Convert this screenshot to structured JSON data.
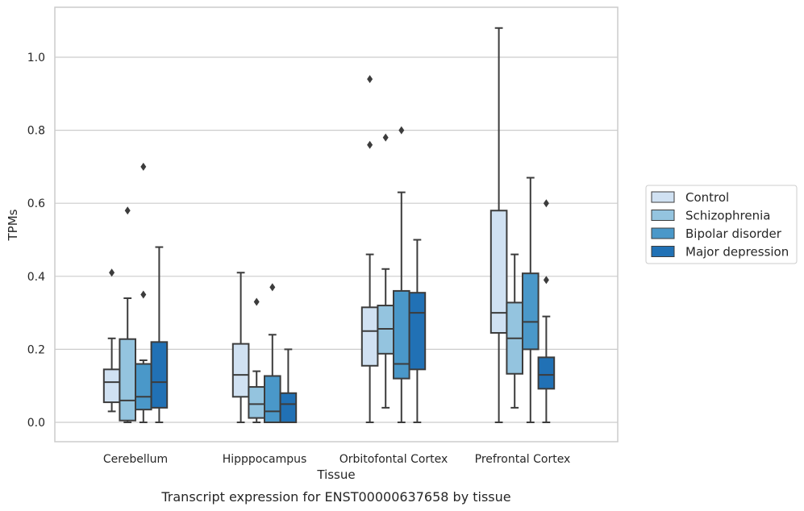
{
  "chart_data": {
    "type": "box",
    "xlabel": "Tissue",
    "ylabel": "TPMs",
    "caption": "Transcript expression for ENST00000637658 by tissue",
    "ylim": [
      -0.05,
      1.14
    ],
    "yticks": [
      0.0,
      0.2,
      0.4,
      0.6,
      0.8,
      1.0
    ],
    "ytick_labels": [
      "0.0",
      "0.2",
      "0.4",
      "0.6",
      "0.8",
      "1.0"
    ],
    "grid": true,
    "legend_position": "right",
    "categories": [
      "Cerebellum",
      "Hipppocampus",
      "Orbitofontal Cortex",
      "Prefrontal Cortex"
    ],
    "series": [
      {
        "name": "Control",
        "color": "#d0e1f2",
        "boxes": [
          {
            "whislo": 0.03,
            "q1": 0.055,
            "med": 0.11,
            "q3": 0.145,
            "whishi": 0.23,
            "fliers": [
              0.41
            ]
          },
          {
            "whislo": 0.0,
            "q1": 0.07,
            "med": 0.13,
            "q3": 0.215,
            "whishi": 0.41,
            "fliers": []
          },
          {
            "whislo": 0.0,
            "q1": 0.155,
            "med": 0.25,
            "q3": 0.315,
            "whishi": 0.46,
            "fliers": [
              0.76,
              0.94
            ]
          },
          {
            "whislo": 0.0,
            "q1": 0.245,
            "med": 0.3,
            "q3": 0.58,
            "whishi": 1.08,
            "fliers": []
          }
        ]
      },
      {
        "name": "Schizophrenia",
        "color": "#94c4df",
        "boxes": [
          {
            "whislo": 0.0,
            "q1": 0.005,
            "med": 0.06,
            "q3": 0.228,
            "whishi": 0.34,
            "fliers": [
              0.58
            ]
          },
          {
            "whislo": 0.0,
            "q1": 0.012,
            "med": 0.05,
            "q3": 0.097,
            "whishi": 0.14,
            "fliers": [
              0.33
            ]
          },
          {
            "whislo": 0.04,
            "q1": 0.188,
            "med": 0.256,
            "q3": 0.32,
            "whishi": 0.42,
            "fliers": [
              0.78
            ]
          },
          {
            "whislo": 0.04,
            "q1": 0.133,
            "med": 0.23,
            "q3": 0.328,
            "whishi": 0.46,
            "fliers": []
          }
        ]
      },
      {
        "name": "Bipolar disorder",
        "color": "#4a98c9",
        "boxes": [
          {
            "whislo": 0.0,
            "q1": 0.035,
            "med": 0.07,
            "q3": 0.16,
            "whishi": 0.17,
            "fliers": [
              0.35,
              0.7
            ]
          },
          {
            "whislo": 0.0,
            "q1": 0.0,
            "med": 0.03,
            "q3": 0.127,
            "whishi": 0.24,
            "fliers": [
              0.37
            ]
          },
          {
            "whislo": 0.0,
            "q1": 0.12,
            "med": 0.16,
            "q3": 0.36,
            "whishi": 0.63,
            "fliers": [
              0.8
            ]
          },
          {
            "whislo": 0.0,
            "q1": 0.2,
            "med": 0.275,
            "q3": 0.408,
            "whishi": 0.67,
            "fliers": []
          }
        ]
      },
      {
        "name": "Major depression",
        "color": "#2171b5",
        "boxes": [
          {
            "whislo": 0.0,
            "q1": 0.04,
            "med": 0.11,
            "q3": 0.22,
            "whishi": 0.48,
            "fliers": []
          },
          {
            "whislo": 0.0,
            "q1": 0.0,
            "med": 0.05,
            "q3": 0.08,
            "whishi": 0.2,
            "fliers": []
          },
          {
            "whislo": 0.0,
            "q1": 0.145,
            "med": 0.3,
            "q3": 0.355,
            "whishi": 0.5,
            "fliers": []
          },
          {
            "whislo": 0.0,
            "q1": 0.092,
            "med": 0.13,
            "q3": 0.178,
            "whishi": 0.29,
            "fliers": [
              0.39,
              0.6
            ]
          }
        ]
      }
    ]
  }
}
